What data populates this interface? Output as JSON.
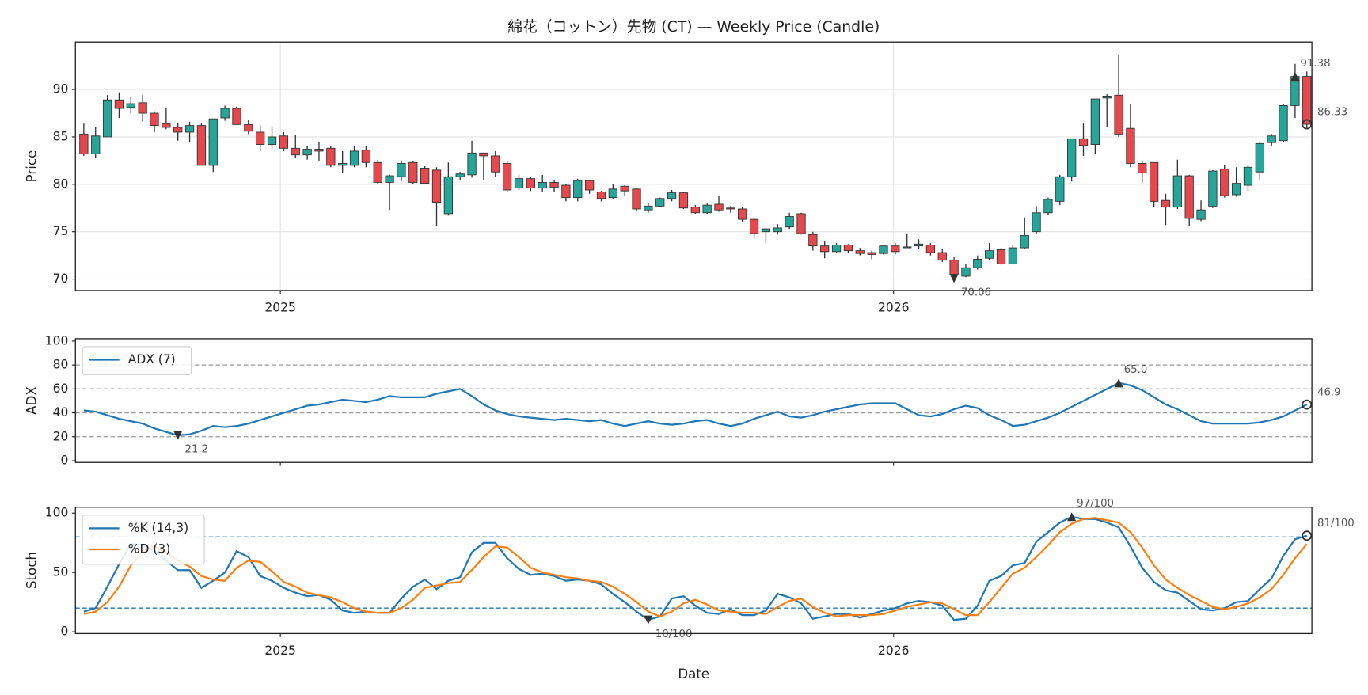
{
  "chart_data": [
    {
      "type": "candlestick",
      "title": "綿花（コットン）先物 (CT) — Weekly Price (Candle)",
      "ylabel": "Price",
      "x": [
        "2024-09-06",
        "2024-09-13",
        "2024-09-20",
        "2024-09-27",
        "2024-10-04",
        "2024-10-11",
        "2024-10-18",
        "2024-10-25",
        "2024-11-01",
        "2024-11-08",
        "2024-11-15",
        "2024-11-22",
        "2024-11-29",
        "2024-12-06",
        "2024-12-13",
        "2024-12-20",
        "2024-12-27",
        "2025-01-03",
        "2025-01-10",
        "2025-01-17",
        "2025-01-24",
        "2025-01-31",
        "2025-02-07",
        "2025-02-14",
        "2025-02-21",
        "2025-02-28",
        "2025-03-07",
        "2025-03-14",
        "2025-03-21",
        "2025-03-28",
        "2025-04-04",
        "2025-04-11",
        "2025-04-18",
        "2025-04-25",
        "2025-05-02",
        "2025-05-09",
        "2025-05-16",
        "2025-05-23",
        "2025-05-30",
        "2025-06-06",
        "2025-06-13",
        "2025-06-20",
        "2025-06-27",
        "2025-07-04",
        "2025-07-11",
        "2025-07-18",
        "2025-07-25",
        "2025-08-01",
        "2025-08-08",
        "2025-08-15",
        "2025-08-22",
        "2025-08-29",
        "2025-09-05",
        "2025-09-12",
        "2025-09-19",
        "2025-09-26",
        "2025-10-03",
        "2025-10-10",
        "2025-10-17",
        "2025-10-24",
        "2025-10-31",
        "2025-11-07",
        "2025-11-14",
        "2025-11-21",
        "2025-11-28",
        "2025-12-05",
        "2025-12-12",
        "2025-12-19",
        "2025-12-26",
        "2026-01-02",
        "2026-01-09",
        "2026-01-16",
        "2026-01-23",
        "2026-01-30",
        "2026-02-06",
        "2026-02-13",
        "2026-02-20",
        "2026-02-27",
        "2026-03-06",
        "2026-03-13",
        "2026-03-20",
        "2026-03-27",
        "2026-04-03",
        "2026-04-10",
        "2026-04-17",
        "2026-04-24",
        "2026-05-01",
        "2026-05-08",
        "2026-05-15",
        "2026-05-22",
        "2026-05-29",
        "2026-06-05",
        "2026-06-12",
        "2026-06-19",
        "2026-06-26",
        "2026-07-03",
        "2026-07-10",
        "2026-07-17",
        "2026-07-24",
        "2026-07-31",
        "2026-08-07",
        "2026-08-14",
        "2026-08-21",
        "2026-08-28",
        "2026-09-04"
      ],
      "open": [
        85.3,
        83.2,
        85,
        88.9,
        88.1,
        88.6,
        87.5,
        86.4,
        86,
        85.5,
        86.2,
        82,
        87,
        88,
        86.3,
        85.5,
        84.2,
        85.1,
        83.8,
        83.1,
        83.7,
        83.8,
        82,
        82,
        83.6,
        82.3,
        80.2,
        80.8,
        82.3,
        81.7,
        81.5,
        76.9,
        80.8,
        81,
        83.3,
        83,
        82.2,
        79.6,
        80.6,
        79.6,
        80.2,
        79.9,
        78.6,
        80.4,
        79.2,
        78.6,
        79.8,
        79.5,
        77.3,
        77.7,
        78.5,
        79.1,
        77.6,
        77,
        77.9,
        77.5,
        77.4,
        76.3,
        75,
        75,
        75.5,
        76.9,
        74.7,
        73.5,
        72.9,
        73.6,
        73,
        72.8,
        72.7,
        73.5,
        73.3,
        73.5,
        73.6,
        72.8,
        72,
        70.3,
        71.2,
        72.2,
        73.1,
        71.6,
        73.3,
        75,
        77,
        78.2,
        80.8,
        84.8,
        84.2,
        89.1,
        89.4,
        85.9,
        82.2,
        82.3,
        78.3,
        77.6,
        80.9,
        76.3,
        77.7,
        81.6,
        78.9,
        79.9,
        81.3,
        84.4,
        84.6,
        88.3,
        91.38
      ],
      "high": [
        86.4,
        86,
        89.4,
        89.7,
        89.2,
        89.4,
        87.7,
        88,
        86.5,
        86.6,
        86.4,
        86.9,
        88.3,
        88.2,
        86.8,
        86.2,
        86,
        85.5,
        85.2,
        84,
        84.5,
        84,
        83.5,
        84,
        84,
        82.6,
        81,
        82.5,
        82.4,
        81.9,
        81.8,
        82.3,
        81.3,
        84.6,
        83.3,
        83.5,
        82.5,
        81,
        80.8,
        81,
        80.5,
        80,
        80.6,
        80.5,
        79.3,
        80,
        79.9,
        79.6,
        78,
        78.6,
        79.4,
        79.2,
        77.8,
        78,
        78.8,
        77.7,
        77.6,
        76.4,
        75.4,
        75.8,
        77,
        77,
        75,
        74,
        73.8,
        73.7,
        73.3,
        73,
        73.6,
        73.8,
        74.8,
        74.2,
        73.8,
        73.2,
        72.3,
        71.6,
        72.5,
        73.8,
        73.3,
        73.6,
        76.5,
        77.7,
        78.6,
        81,
        84.8,
        86.4,
        89,
        89.5,
        93.6,
        88.5,
        82.5,
        82.3,
        79,
        82.6,
        81,
        78.3,
        81.5,
        82,
        81.8,
        82,
        84.4,
        85.3,
        88.5,
        92.7,
        91.9
      ],
      "low": [
        83,
        82.8,
        85,
        87,
        87.5,
        86.6,
        85.5,
        85.8,
        84.6,
        84.4,
        82,
        81.3,
        86.7,
        86.3,
        85.3,
        83.5,
        83.8,
        83.5,
        82.8,
        82.6,
        82.5,
        81.8,
        81.2,
        81.8,
        81.8,
        80,
        77.3,
        80.3,
        80,
        80,
        75.6,
        76.7,
        80.4,
        80.7,
        80.4,
        80.8,
        79.2,
        79.4,
        79.3,
        79.2,
        79.2,
        78.2,
        78.2,
        79,
        78.2,
        78.5,
        78.8,
        77.2,
        77,
        77.6,
        78.2,
        77.4,
        76.9,
        76.9,
        77.1,
        77,
        76,
        74.3,
        73.8,
        74.7,
        75.3,
        74.7,
        73,
        72.2,
        72.8,
        72.8,
        72.5,
        72.1,
        72.6,
        72.6,
        73.3,
        73.2,
        72.5,
        71.8,
        70.06,
        70.2,
        71,
        72,
        71.5,
        71.5,
        73.2,
        74.8,
        76.8,
        77.8,
        80.3,
        83,
        83.2,
        86,
        85,
        81.8,
        80.2,
        77.6,
        75.7,
        77.4,
        75.6,
        76.1,
        77.5,
        78.6,
        78.7,
        79.3,
        80.5,
        84,
        84.4,
        87,
        85.9
      ],
      "close": [
        83.2,
        85.1,
        88.9,
        88,
        88.5,
        87.5,
        86.2,
        86,
        85.5,
        86.2,
        82,
        86.9,
        88,
        86.3,
        85.6,
        84.2,
        85,
        83.8,
        83.1,
        83.7,
        83.5,
        82,
        82.2,
        83.5,
        82.3,
        80.2,
        80.9,
        82.2,
        80.2,
        80.1,
        78.1,
        80.8,
        81.1,
        83.3,
        83,
        81.3,
        79.4,
        80.6,
        79.6,
        80.2,
        79.7,
        78.6,
        80.4,
        79.4,
        78.5,
        79.5,
        79.3,
        77.4,
        77.7,
        78.5,
        79.1,
        77.5,
        77,
        77.8,
        77.3,
        77.4,
        76.3,
        74.8,
        75.3,
        75.4,
        76.6,
        74.8,
        73.5,
        72.9,
        73.6,
        73,
        72.7,
        72.6,
        73.5,
        72.9,
        73.4,
        73.7,
        72.8,
        72,
        70.5,
        71.2,
        72.1,
        73,
        71.6,
        73.3,
        74.6,
        77,
        78.4,
        80.8,
        84.8,
        84.1,
        89,
        89.3,
        85.3,
        82.2,
        81.2,
        78.2,
        77.6,
        80.9,
        76.4,
        77.3,
        81.4,
        78.8,
        80.1,
        81.8,
        84.3,
        85.1,
        88.3,
        91.38,
        86.33
      ],
      "up_color": "#26a69a",
      "down_color": "#e5484d",
      "xlim": [
        "2024-09-01",
        "2026-09-07"
      ],
      "xticks": [
        {
          "value": "2025-01-01",
          "label": "2025"
        },
        {
          "value": "2026-01-01",
          "label": "2026"
        }
      ],
      "ylim": [
        68.8,
        95
      ],
      "yticks": [
        70,
        75,
        80,
        85,
        90
      ],
      "grid": true,
      "annotations": [
        {
          "x": "2026-02-06",
          "value": 70.06,
          "kind": "min"
        },
        {
          "x": "2026-08-28",
          "value": 91.38,
          "kind": "max"
        },
        {
          "x": "2026-09-04",
          "value": 86.33,
          "kind": "last"
        }
      ]
    },
    {
      "type": "line",
      "ylabel": "ADX",
      "xtick_labels": false,
      "series": [
        {
          "name": "ADX (7)",
          "color": "#1f77b4",
          "values": [
            42,
            41,
            38,
            35,
            33,
            31,
            27,
            24,
            21.2,
            22,
            25,
            29,
            28,
            29,
            31,
            34,
            37,
            40,
            43,
            46,
            47,
            49,
            51,
            50,
            49,
            51,
            54,
            53,
            53,
            53,
            56,
            58,
            60,
            54,
            47,
            42,
            39,
            37,
            36,
            35,
            34,
            35,
            34,
            33,
            34,
            31,
            29,
            31,
            33,
            31,
            30,
            31,
            33,
            34,
            31,
            29,
            31,
            35,
            38,
            41,
            37,
            36,
            38,
            41,
            43,
            45,
            47,
            48,
            48,
            48,
            43,
            38,
            37,
            39,
            43,
            46,
            44,
            38,
            34,
            29,
            30,
            33,
            36,
            40,
            45,
            50,
            55,
            60,
            65,
            63,
            59,
            53,
            47,
            43,
            38,
            33,
            31,
            31,
            31,
            31,
            32,
            34,
            37,
            42,
            46.9
          ]
        }
      ],
      "ylim": [
        -1.5,
        102
      ],
      "yticks": [
        0,
        20,
        40,
        60,
        80,
        100
      ],
      "hlines": [
        20,
        40,
        60,
        80
      ],
      "hline_color": "#999999",
      "legend": "upper left",
      "annotations": [
        {
          "x": "2024-11-01",
          "value": 21.2,
          "kind": "min"
        },
        {
          "x": "2026-05-15",
          "value": 65,
          "label": "65.0",
          "kind": "max"
        },
        {
          "x": "2026-09-04",
          "value": 46.9,
          "kind": "last"
        }
      ]
    },
    {
      "type": "line",
      "ylabel": "Stoch",
      "xlabel": "Date",
      "series": [
        {
          "name": "%K (14,3)",
          "color": "#1f77b4",
          "values": [
            17,
            20,
            38,
            57,
            74,
            73,
            68,
            60,
            52,
            52,
            37,
            43,
            50,
            68,
            63,
            47,
            43,
            37,
            33,
            30,
            31,
            27,
            18,
            16,
            17,
            16,
            16,
            28,
            38,
            44,
            36,
            43,
            46,
            67,
            75,
            75,
            62,
            53,
            48,
            49,
            47,
            43,
            44,
            43,
            40,
            32,
            25,
            17,
            10,
            13,
            28,
            30,
            22,
            16,
            15,
            19,
            14,
            14,
            18,
            32,
            29,
            24,
            11,
            13,
            15,
            15,
            12,
            15,
            18,
            20,
            24,
            26,
            25,
            22,
            10,
            11,
            22,
            43,
            47,
            56,
            58,
            76,
            84,
            92,
            97,
            95,
            95,
            92,
            88,
            72,
            54,
            42,
            35,
            33,
            26,
            19,
            18,
            20,
            25,
            26,
            36,
            45,
            64,
            78,
            81
          ]
        },
        {
          "name": "%D (3)",
          "color": "#ff7f0e",
          "values": [
            15,
            17,
            25,
            38,
            56,
            68,
            72,
            67,
            60,
            55,
            47,
            44,
            43,
            54,
            60,
            59,
            51,
            42,
            38,
            33,
            31,
            29,
            25,
            20,
            17,
            16,
            16,
            20,
            27,
            37,
            39,
            41,
            42,
            52,
            63,
            72,
            71,
            63,
            54,
            50,
            48,
            46,
            45,
            43,
            42,
            38,
            32,
            25,
            17,
            13,
            17,
            24,
            27,
            23,
            18,
            17,
            16,
            16,
            15,
            21,
            26,
            28,
            21,
            16,
            13,
            14,
            14,
            14,
            15,
            18,
            21,
            23,
            25,
            24,
            19,
            14,
            14,
            25,
            37,
            49,
            54,
            63,
            73,
            84,
            91,
            95,
            96,
            94,
            92,
            84,
            71,
            56,
            44,
            37,
            31,
            26,
            21,
            19,
            21,
            24,
            29,
            36,
            48,
            62,
            74
          ]
        }
      ],
      "ylim": [
        -1.5,
        105
      ],
      "yticks": [
        0,
        50,
        100
      ],
      "hlines": [
        20,
        80
      ],
      "hline_color": "#1f77b4",
      "legend": "upper left",
      "annotations": [
        {
          "x": "2025-08-08",
          "value": 10,
          "label": "10/100",
          "kind": "min"
        },
        {
          "x": "2026-04-17",
          "value": 97,
          "label": "97/100",
          "kind": "max"
        },
        {
          "x": "2026-09-04",
          "value": 81,
          "label": "81/100",
          "kind": "last"
        }
      ]
    }
  ]
}
